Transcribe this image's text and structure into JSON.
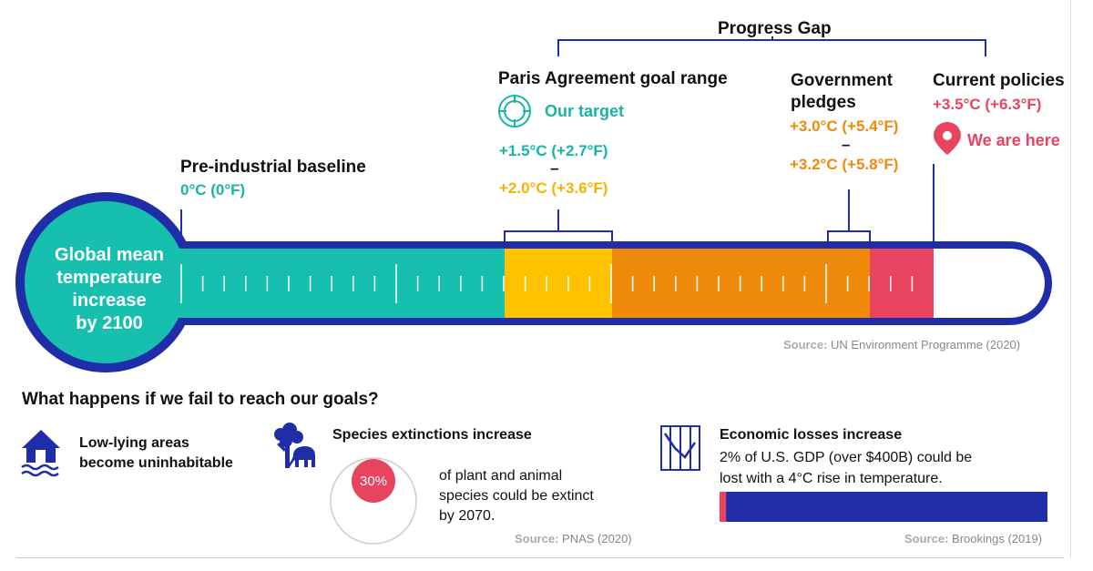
{
  "scale": {
    "progress_gap_label": "Progress Gap",
    "source_label": "Source:",
    "source_text": "UN Environment Programme (2020)",
    "bulb_label_lines": [
      "Global mean",
      "temperature",
      "increase",
      "by 2100"
    ],
    "colors": {
      "teal": "#17c0ae",
      "yellow": "#ffc200",
      "orange": "#f08a0b",
      "red": "#e8435f",
      "navy": "#1f2ea8"
    }
  },
  "baseline": {
    "title": "Pre-industrial baseline",
    "value": "0°C (0°F)"
  },
  "paris": {
    "title": "Paris Agreement goal range",
    "target_label": "Our target",
    "target_icon": "crosshair-target-icon",
    "low": "+1.5°C (+2.7°F)",
    "dash": "–",
    "high": "+2.0°C (+3.6°F)"
  },
  "pledges": {
    "title_lines": [
      "Government",
      "pledges"
    ],
    "low": "+3.0°C (+5.4°F)",
    "dash": "–",
    "high": "+3.2°C (+5.8°F)"
  },
  "current": {
    "title": "Current policies",
    "value": "+3.5°C (+6.3°F)",
    "marker_label": "We are here",
    "marker_icon": "location-pin-icon"
  },
  "consequences": {
    "heading": "What happens if we fail to reach our goals?",
    "low_lying": {
      "icon": "flooded-house-icon",
      "lines": [
        "Low-lying areas",
        "become uninhabitable"
      ]
    },
    "species": {
      "icon": "tree-elephant-icon",
      "title": "Species extinctions increase",
      "percent_label": "30%",
      "percent_value": 30,
      "text_lines": [
        "of plant and animal",
        "species could be extinct",
        "by 2070."
      ],
      "source_label": "Source:",
      "source_text": "PNAS (2020)"
    },
    "economic": {
      "icon": "stock-chart-icon",
      "title": "Economic losses increase",
      "text_lines": [
        "2% of U.S. GDP (over $400B) could be",
        "lost with a 4°C rise in temperature."
      ],
      "loss_percent": 2,
      "source_label": "Source:",
      "source_text": "Brookings (2019)"
    }
  }
}
